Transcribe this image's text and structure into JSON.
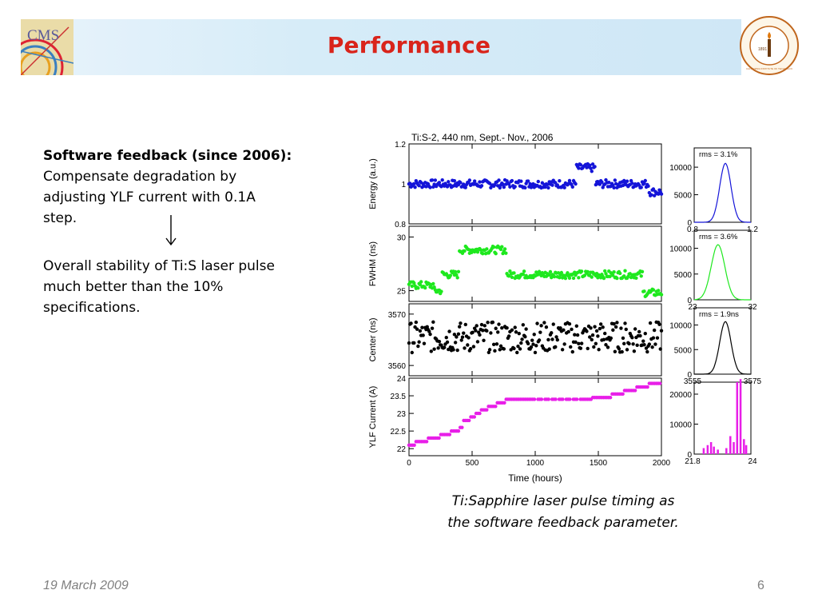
{
  "slide": {
    "title": "Performance",
    "date": "19 March 2009",
    "page_number": "6"
  },
  "logos": {
    "left": {
      "text": "CMS",
      "icon": "cms-logo"
    },
    "right": {
      "text": "CALIFORNIA INSTITUTE OF TECHNOLOGY",
      "year": "1891",
      "icon": "caltech-seal"
    }
  },
  "text": {
    "heading": "Software feedback (since 2006):",
    "line1": "Compensate degradation  by",
    "line2": "adjusting YLF current with 0.1A",
    "line3": "step.",
    "para2_line1": "Overall stability of Ti:S laser pulse",
    "para2_line2": "much better than the 10%",
    "para2_line3": "specifications."
  },
  "caption": {
    "line1": "Ti:Sapphire laser pulse timing as",
    "line2": "the software feedback parameter."
  },
  "chart_data": {
    "type": "scatter",
    "title": "Ti:S-2, 440 nm, Sept.- Nov., 2006",
    "xlabel": "Time (hours)",
    "x_ticks": [
      "0",
      "500",
      "1000",
      "1500",
      "2000"
    ],
    "xlim": [
      0,
      2000
    ],
    "panels": [
      {
        "ylabel": "Energy (a.u.)",
        "ylim": [
          0.8,
          1.2
        ],
        "y_ticks": [
          "1.2",
          "1",
          "0.8"
        ],
        "color": "#1414d8",
        "hist": {
          "label": "rms = 3.1%",
          "y_ticks": [
            "10000",
            "5000",
            "0"
          ],
          "x_ticks": [
            "0.8",
            "1.2"
          ]
        }
      },
      {
        "ylabel": "FWHM (ns)",
        "ylim": [
          24,
          31
        ],
        "y_ticks": [
          "30",
          "25"
        ],
        "color": "#1ee81e",
        "hist": {
          "label": "rms = 3.6%",
          "y_ticks": [
            "10000",
            "5000",
            "0"
          ],
          "x_ticks": [
            "23",
            "32"
          ]
        }
      },
      {
        "ylabel": "Center (ns)",
        "ylim": [
          3558,
          3572
        ],
        "y_ticks": [
          "3570",
          "3560"
        ],
        "color": "#000000",
        "hist": {
          "label": "rms = 1.9ns",
          "y_ticks": [
            "10000",
            "5000",
            "0"
          ],
          "x_ticks": [
            "3555",
            "3575"
          ]
        }
      },
      {
        "ylabel": "YLF Current (A)",
        "ylim": [
          21.8,
          24
        ],
        "y_ticks": [
          "24",
          "23.5",
          "23",
          "22.5",
          "22"
        ],
        "color": "#e81ee8",
        "hist": {
          "label": "",
          "y_ticks": [
            "20000",
            "10000",
            "0"
          ],
          "x_ticks": [
            "21.8",
            "24"
          ]
        }
      }
    ]
  }
}
